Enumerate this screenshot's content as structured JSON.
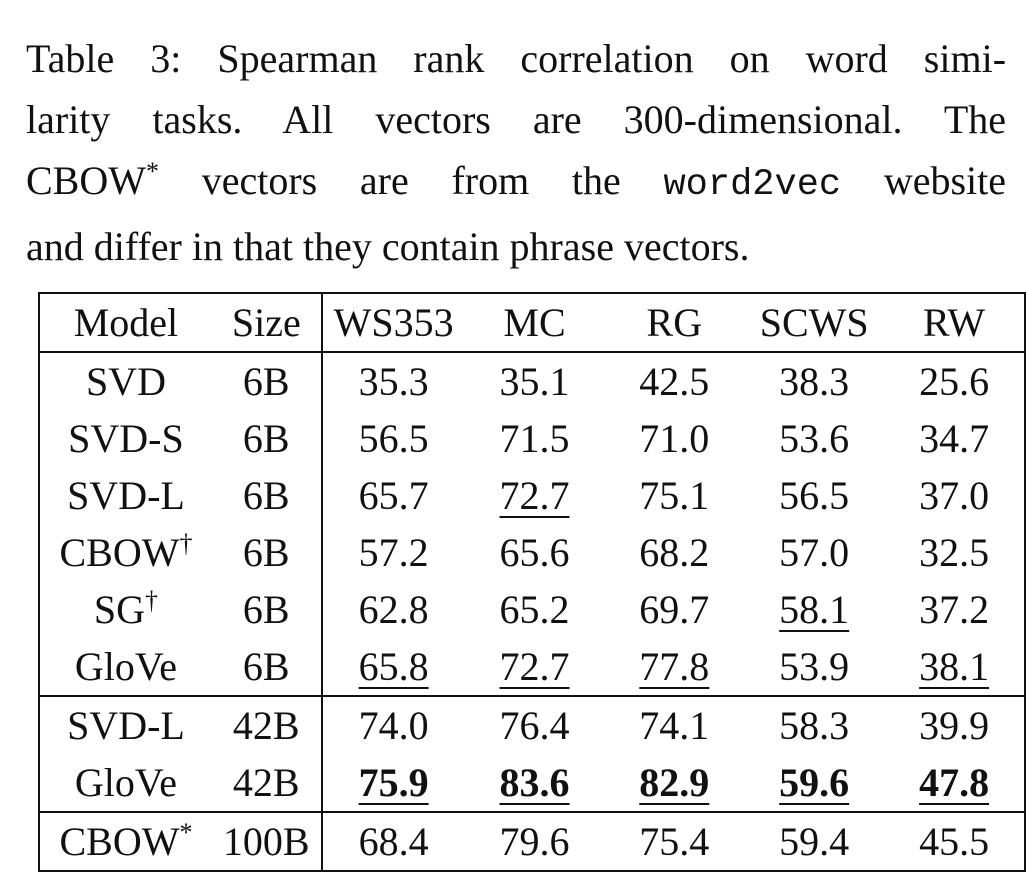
{
  "caption": {
    "label": "Table 3:",
    "line1_text": "Spearman rank correlation on word simi-",
    "line2_text": "larity tasks. All vectors are 300-dimensional. The",
    "line3_pre": "CBOW",
    "line3_sup": "*",
    "line3_mid": "vectors are from the",
    "line3_code": "word2vec",
    "line3_post": "website",
    "line4_text": "and differ in that they contain phrase vectors."
  },
  "table": {
    "headers": [
      "Model",
      "Size",
      "WS353",
      "MC",
      "RG",
      "SCWS",
      "RW"
    ],
    "rows": [
      {
        "model": "SVD",
        "mark": "",
        "size": "6B",
        "values": [
          "35.3",
          "35.1",
          "42.5",
          "38.3",
          "25.6"
        ]
      },
      {
        "model": "SVD-S",
        "mark": "",
        "size": "6B",
        "values": [
          "56.5",
          "71.5",
          "71.0",
          "53.6",
          "34.7"
        ]
      },
      {
        "model": "SVD-L",
        "mark": "",
        "size": "6B",
        "values": [
          "65.7",
          "72.7",
          "75.1",
          "56.5",
          "37.0"
        ]
      },
      {
        "model": "CBOW",
        "mark": "†",
        "size": "6B",
        "values": [
          "57.2",
          "65.6",
          "68.2",
          "57.0",
          "32.5"
        ]
      },
      {
        "model": "SG",
        "mark": "†",
        "size": "6B",
        "values": [
          "62.8",
          "65.2",
          "69.7",
          "58.1",
          "37.2"
        ]
      },
      {
        "model": "GloVe",
        "mark": "",
        "size": "6B",
        "values": [
          "65.8",
          "72.7",
          "77.8",
          "53.9",
          "38.1"
        ]
      },
      {
        "model": "SVD-L",
        "mark": "",
        "size": "42B",
        "values": [
          "74.0",
          "76.4",
          "74.1",
          "58.3",
          "39.9"
        ]
      },
      {
        "model": "GloVe",
        "mark": "",
        "size": "42B",
        "values": [
          "75.9",
          "83.6",
          "82.9",
          "59.6",
          "47.8"
        ]
      },
      {
        "model": "CBOW",
        "mark": "*",
        "size": "100B",
        "values": [
          "68.4",
          "79.6",
          "75.4",
          "59.4",
          "45.5"
        ]
      }
    ]
  }
}
